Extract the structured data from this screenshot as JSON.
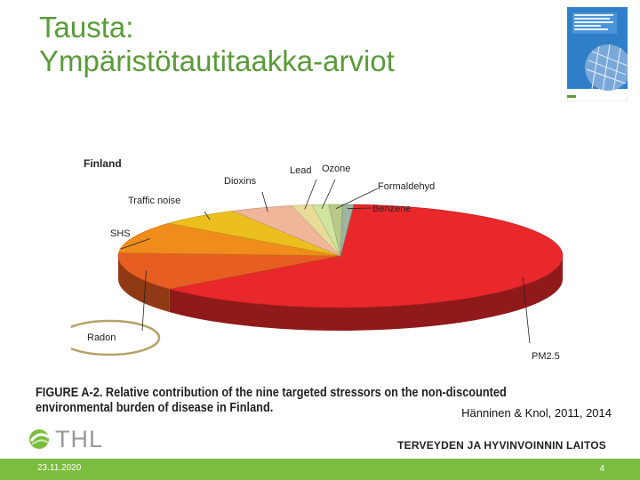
{
  "slide": {
    "title_line1": "Tausta:",
    "title_line2": "Ympäristötautitaakka-arviot",
    "caption": "FIGURE A-2. Relative contribution of the nine targeted stressors on the non-discounted environmental burden of disease in Finland.",
    "citation": "Hänninen & Knol, 2011, 2014",
    "logo_text": "THL",
    "institute": "TERVEYDEN JA HYVINVOINNIN LAITOS",
    "date": "23.11.2020",
    "page_number": "4"
  },
  "chart_data": {
    "type": "pie",
    "title": "Finland",
    "labels": [
      "PM2.5",
      "Radon",
      "SHS",
      "Traffic noise",
      "Dioxins",
      "Lead",
      "Ozone",
      "Formaldehyd",
      "Benzene"
    ],
    "values": [
      63,
      12,
      10,
      6,
      4.5,
      1.5,
      1.2,
      1.0,
      0.8
    ],
    "colors": {
      "PM2.5": "#e8282a",
      "Radon": "#e85e22",
      "SHS": "#f08c1c",
      "Traffic noise": "#ecbe1e",
      "Dioxins": "#f0b69a",
      "Lead": "#e8dc98",
      "Ozone": "#d0e4a0",
      "Formaldehyd": "#b8c888",
      "Benzene": "#9cb4a0"
    },
    "annotations": [
      "Radon highlighted with an oval outline"
    ]
  }
}
